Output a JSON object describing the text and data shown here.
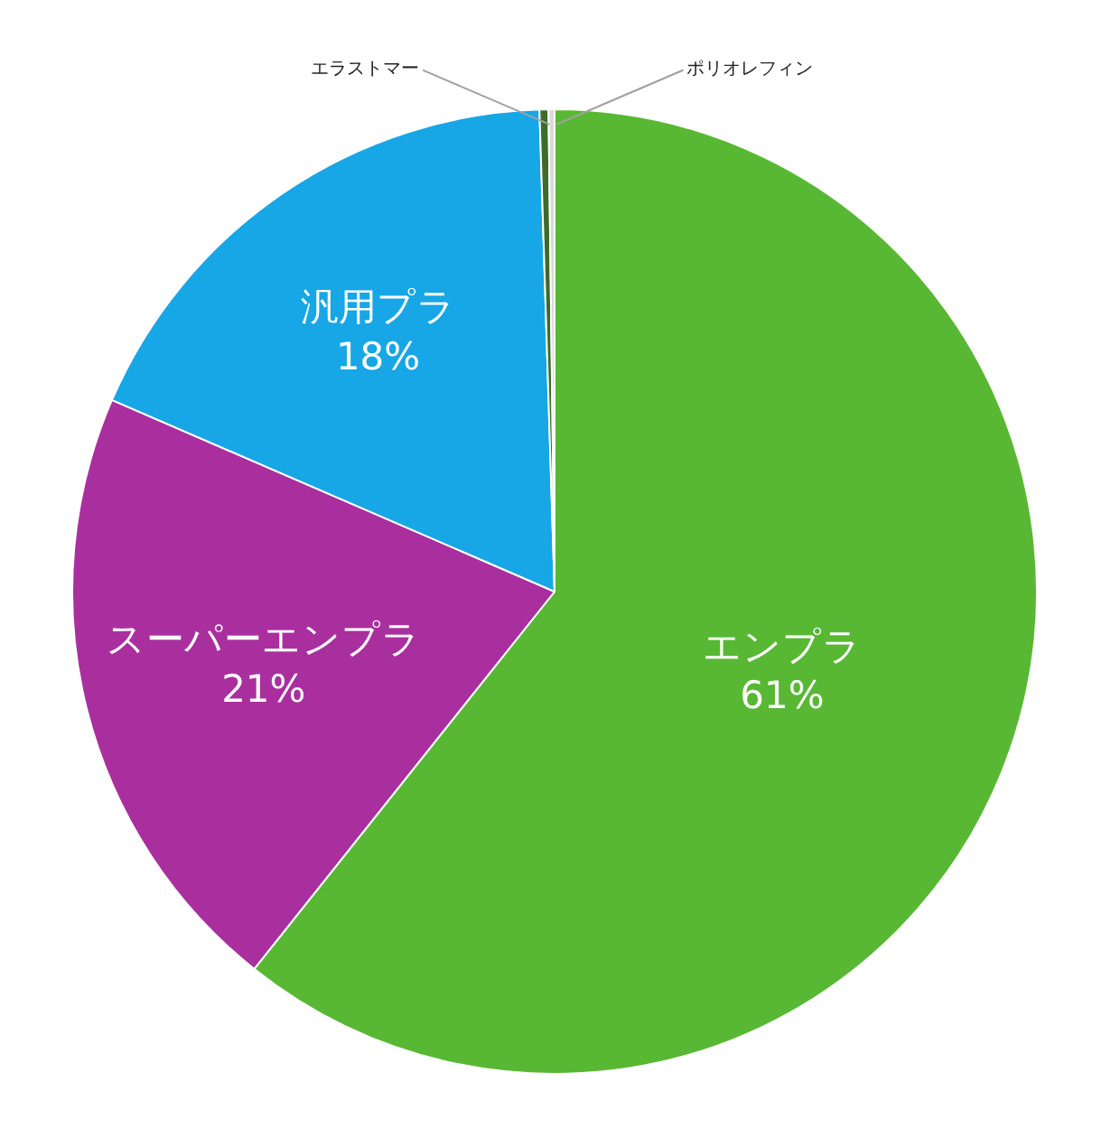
{
  "chart_data": {
    "type": "pie",
    "categories": [
      "エンプラ",
      "スーパーエンプラ",
      "汎用プラ",
      "エラストマー",
      "ポリオレフィン"
    ],
    "values": [
      60.7,
      20.8,
      18.0,
      0.3,
      0.2
    ],
    "value_labels": [
      "61%",
      "21%",
      "18%",
      null,
      null
    ],
    "colors": [
      "#58b833",
      "#a92f9f",
      "#17a6e6",
      "#3d6b2a",
      "#d9d9d9"
    ],
    "legend": false
  }
}
